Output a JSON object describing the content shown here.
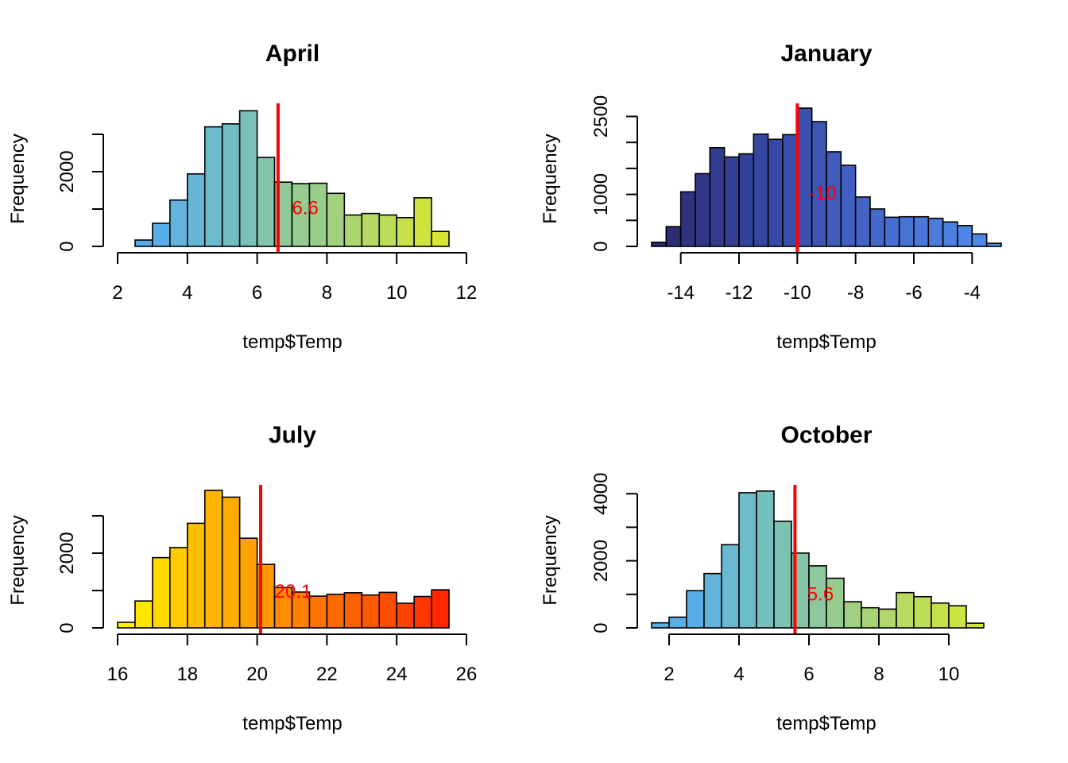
{
  "chart_data": [
    {
      "type": "bar",
      "subtype": "histogram",
      "title": "April",
      "xlabel": "temp$Temp",
      "ylabel": "Frequency",
      "xlim": [
        2,
        12
      ],
      "ylim": [
        0,
        3500
      ],
      "x_ticks": [
        "2",
        "4",
        "6",
        "8",
        "10",
        "12"
      ],
      "y_ticks": [
        "0",
        "2000"
      ],
      "y_tick_values": [
        0,
        1000,
        2000,
        3000
      ],
      "bin_start": 2.0,
      "bin_width": 0.5,
      "values": [
        0,
        170,
        620,
        1240,
        1940,
        3200,
        3280,
        3630,
        2380,
        1720,
        1680,
        1690,
        1420,
        840,
        880,
        840,
        770,
        1300,
        400
      ],
      "colors": [
        "#5aaee8",
        "#5aaee8",
        "#5aaee8",
        "#63b3dc",
        "#66b6d6",
        "#6abbcb",
        "#71bec2",
        "#79c1b7",
        "#83c4aa",
        "#8fc99a",
        "#96cc90",
        "#98cd8c",
        "#a2d07e",
        "#acd56f",
        "#b5d964",
        "#bddc58",
        "#c5e04c",
        "#cee33f",
        "#d8e633"
      ],
      "mean_line": 6.6,
      "mean_label": "6.6",
      "mean_label_x": 7.0,
      "mean_label_y": 1050,
      "y_tick_labels_shown": [
        true,
        false,
        true,
        false
      ]
    },
    {
      "type": "bar",
      "subtype": "histogram",
      "title": "January",
      "xlabel": "temp$Temp",
      "ylabel": "Frequency",
      "xlim": [
        -15,
        -3
      ],
      "ylim": [
        0,
        2700
      ],
      "x_ticks": [
        "-14",
        "-12",
        "-10",
        "-8",
        "-6",
        "-4"
      ],
      "y_ticks": [
        "0",
        "1000",
        "2500"
      ],
      "y_tick_values": [
        0,
        500,
        1000,
        1500,
        2000,
        2500
      ],
      "bin_start": -15.0,
      "bin_width": 0.5,
      "values": [
        80,
        380,
        1050,
        1400,
        1900,
        1720,
        1780,
        2160,
        2060,
        2150,
        2660,
        2400,
        1820,
        1560,
        950,
        720,
        560,
        570,
        570,
        540,
        470,
        400,
        240,
        60
      ],
      "colors": [
        "#2a2a6e",
        "#2c2d74",
        "#2f327e",
        "#313686",
        "#333b8e",
        "#343f94",
        "#35429a",
        "#3646a0",
        "#3749a6",
        "#394dab",
        "#3b52b1",
        "#3d56b6",
        "#3f5bbb",
        "#4160c1",
        "#4364c6",
        "#4569cb",
        "#476ed0",
        "#4872d4",
        "#4a77d8",
        "#4b7cdc",
        "#4c80e0",
        "#4d85e4",
        "#4e89e8",
        "#4f8eec"
      ],
      "mean_line": -10.0,
      "mean_label": "-10",
      "mean_label_x": -9.6,
      "mean_label_y": 1040,
      "y_tick_labels_shown": [
        true,
        false,
        true,
        false,
        false,
        true
      ]
    },
    {
      "type": "bar",
      "subtype": "histogram",
      "title": "July",
      "xlabel": "temp$Temp",
      "ylabel": "Frequency",
      "xlim": [
        16,
        26
      ],
      "ylim": [
        0,
        3500
      ],
      "x_ticks": [
        "16",
        "18",
        "20",
        "22",
        "24",
        "26"
      ],
      "y_ticks": [
        "0",
        "2000"
      ],
      "y_tick_values": [
        0,
        1000,
        2000,
        3000
      ],
      "bin_start": 16.0,
      "bin_width": 0.5,
      "values": [
        150,
        720,
        1880,
        2150,
        2800,
        3680,
        3500,
        2400,
        1700,
        1080,
        960,
        850,
        900,
        940,
        880,
        950,
        660,
        840,
        1020
      ],
      "colors": [
        "#fff200",
        "#ffe600",
        "#ffd800",
        "#ffcb00",
        "#ffbe00",
        "#ffb400",
        "#ffac00",
        "#ffa200",
        "#ff9700",
        "#ff8c00",
        "#ff8000",
        "#ff7500",
        "#ff6b00",
        "#ff6100",
        "#ff5700",
        "#ff4d00",
        "#ff4300",
        "#ff3600",
        "#ff2600"
      ],
      "mean_line": 20.1,
      "mean_label": "20.1",
      "mean_label_x": 20.5,
      "mean_label_y": 1000,
      "y_tick_labels_shown": [
        true,
        false,
        true,
        false
      ]
    },
    {
      "type": "bar",
      "subtype": "histogram",
      "title": "October",
      "xlabel": "temp$Temp",
      "ylabel": "Frequency",
      "xlim": [
        1.5,
        11.5
      ],
      "ylim": [
        0,
        4400
      ],
      "x_ticks": [
        "2",
        "4",
        "6",
        "8",
        "10"
      ],
      "y_ticks": [
        "0",
        "2000",
        "4000"
      ],
      "y_tick_values": [
        0,
        1000,
        2000,
        3000,
        4000
      ],
      "bin_start": 1.5,
      "bin_width": 0.5,
      "values": [
        150,
        320,
        1110,
        1620,
        2480,
        4030,
        4080,
        3180,
        2230,
        1850,
        1480,
        780,
        600,
        560,
        1050,
        930,
        740,
        660,
        140,
        0
      ],
      "colors": [
        "#5aaee8",
        "#5aaee8",
        "#5aaee8",
        "#63b3dc",
        "#68b8d2",
        "#6ebcc7",
        "#75bfbd",
        "#7cc2b3",
        "#84c5a8",
        "#8dc89c",
        "#96cc90",
        "#a0cf82",
        "#a8d375",
        "#b0d76a",
        "#b8da5f",
        "#bfdd54",
        "#c6e04a",
        "#cde33f",
        "#d4e537",
        "#dbe82e"
      ],
      "mean_line": 5.6,
      "mean_label": "5.6",
      "mean_label_x": 5.95,
      "mean_label_y": 1030,
      "y_tick_labels_shown": [
        true,
        false,
        true,
        false,
        true
      ]
    }
  ],
  "colors": {
    "mean_line": "#ff0000",
    "bar_border": "#000000",
    "axis": "#000000"
  }
}
